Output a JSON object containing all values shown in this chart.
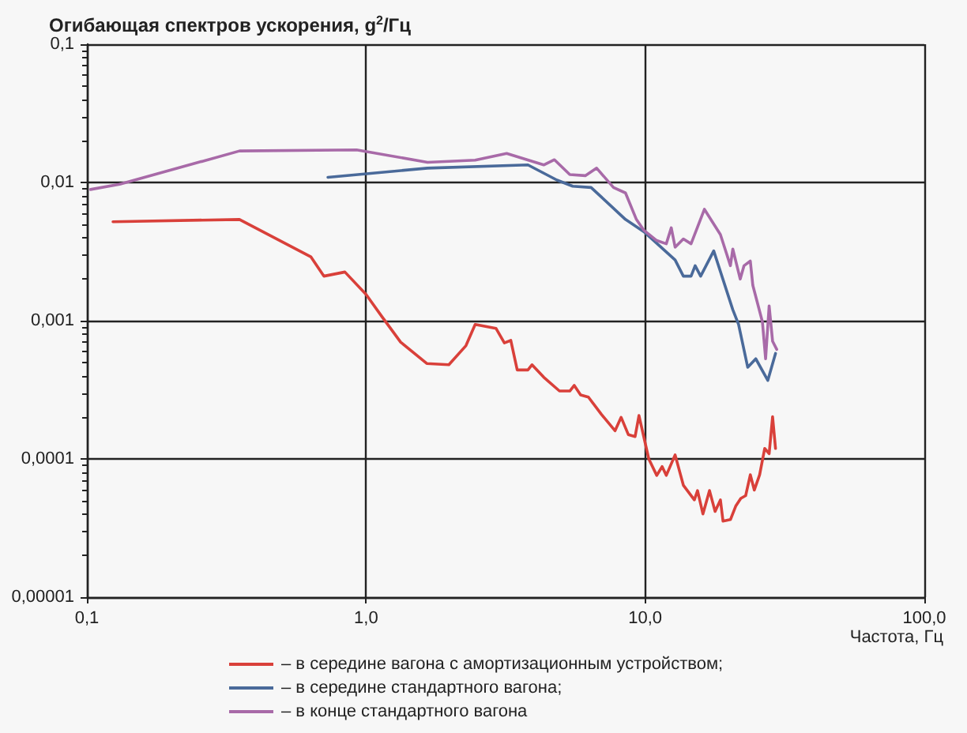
{
  "chart_data": {
    "type": "line",
    "ylabel": "Огибающая спектров ускорения, g$^{2}$/Гц",
    "xlabel": "Частота, Гц",
    "log": "xy",
    "grid": true,
    "legend": "bottom left",
    "marker": "none",
    "line_style": "solid",
    "xlim": [
      0.1,
      100
    ],
    "ylim": [
      1e-05,
      0.1
    ],
    "xticks": [
      {
        "value": 0.1,
        "label": "0,1"
      },
      {
        "value": 1,
        "label": "1,0"
      },
      {
        "value": 10,
        "label": "10,0"
      },
      {
        "value": 100,
        "label": "100,0"
      }
    ],
    "yticks": [
      {
        "value": 1e-05,
        "label": "0,00001"
      },
      {
        "value": 0.0001,
        "label": "0,0001"
      },
      {
        "value": 0.001,
        "label": "0,001"
      },
      {
        "value": 0.01,
        "label": "0,01"
      },
      {
        "value": 0.1,
        "label": "0,1"
      }
    ],
    "series": [
      {
        "name": "– в середине вагона с амортизационным устройством;",
        "color": "#d9403a",
        "x": [
          0.124,
          0.352,
          0.634,
          0.706,
          0.84,
          1,
          1.14,
          1.33,
          1.65,
          1.98,
          2.28,
          2.46,
          2.92,
          3.13,
          3.3,
          3.48,
          3.8,
          3.93,
          4.33,
          4.93,
          5.37,
          5.57,
          5.87,
          6.26,
          6.97,
          7.8,
          8.2,
          8.7,
          9.2,
          9.5,
          10.3,
          11.0,
          11.5,
          11.9,
          12.8,
          13.7,
          15.0,
          15.4,
          16.1,
          17.0,
          17.8,
          18.6,
          19.0,
          20.2,
          21.1,
          22.0,
          22.9,
          23.8,
          24.6,
          25.7,
          26.8,
          27.8,
          28.6,
          29.3
        ],
        "values": [
          0.0052,
          0.0054,
          0.0029,
          0.0021,
          0.00225,
          0.00155,
          0.00107,
          0.0007,
          0.00049,
          0.00048,
          0.00066,
          0.00094,
          0.00088,
          0.00069,
          0.00072,
          0.00044,
          0.00044,
          0.00048,
          0.00039,
          0.00031,
          0.00031,
          0.00034,
          0.00029,
          0.00028,
          0.00021,
          0.00016,
          0.0002,
          0.00015,
          0.000145,
          0.000206,
          0.0001,
          7.6e-05,
          8.8e-05,
          7.6e-05,
          0.000107,
          6.45e-05,
          5.05e-05,
          5.9e-05,
          4e-05,
          5.9e-05,
          4.17e-05,
          5.05e-05,
          3.55e-05,
          3.64e-05,
          4.55e-05,
          5.18e-05,
          5.42e-05,
          7.68e-05,
          5.95e-05,
          7.68e-05,
          0.000119,
          0.000109,
          0.000202,
          0.000119
        ]
      },
      {
        "name": "– в середине стандартного вагона;",
        "color": "#4a6a9a",
        "x": [
          0.73,
          1.66,
          3.8,
          4.83,
          5.5,
          6.4,
          8.5,
          9.9,
          12.8,
          13.7,
          14.6,
          15.1,
          15.8,
          17.6,
          20.6,
          21.6,
          23.3,
          24.9,
          27.5,
          29.3
        ],
        "values": [
          0.0109,
          0.0127,
          0.0134,
          0.0104,
          0.0094,
          0.0092,
          0.0054,
          0.0044,
          0.00275,
          0.0021,
          0.0021,
          0.0025,
          0.0021,
          0.0032,
          0.0012,
          0.00094,
          0.00046,
          0.00053,
          0.00037,
          0.00058
        ]
      },
      {
        "name": "– в конце стандартного вагона",
        "color": "#a86aa8",
        "x": [
          0.103,
          0.131,
          0.352,
          0.925,
          1.66,
          2.46,
          3.19,
          4.33,
          4.73,
          5.37,
          6.1,
          6.7,
          7.7,
          8.5,
          9.3,
          9.9,
          11.0,
          11.9,
          12.4,
          12.8,
          13.7,
          14.6,
          16.3,
          18.6,
          20.2,
          20.6,
          21.9,
          22.6,
          23.8,
          24.3,
          26.3,
          27.0,
          27.8,
          28.6,
          29.6
        ],
        "values": [
          0.0089,
          0.0097,
          0.0169,
          0.0172,
          0.014,
          0.0145,
          0.0162,
          0.0134,
          0.0146,
          0.0114,
          0.0112,
          0.0127,
          0.0092,
          0.0084,
          0.0054,
          0.0045,
          0.0038,
          0.0036,
          0.0047,
          0.0034,
          0.0039,
          0.0036,
          0.0064,
          0.0042,
          0.0025,
          0.0033,
          0.002,
          0.0025,
          0.0027,
          0.0018,
          0.00098,
          0.00053,
          0.00128,
          0.00071,
          0.00062
        ]
      }
    ]
  }
}
